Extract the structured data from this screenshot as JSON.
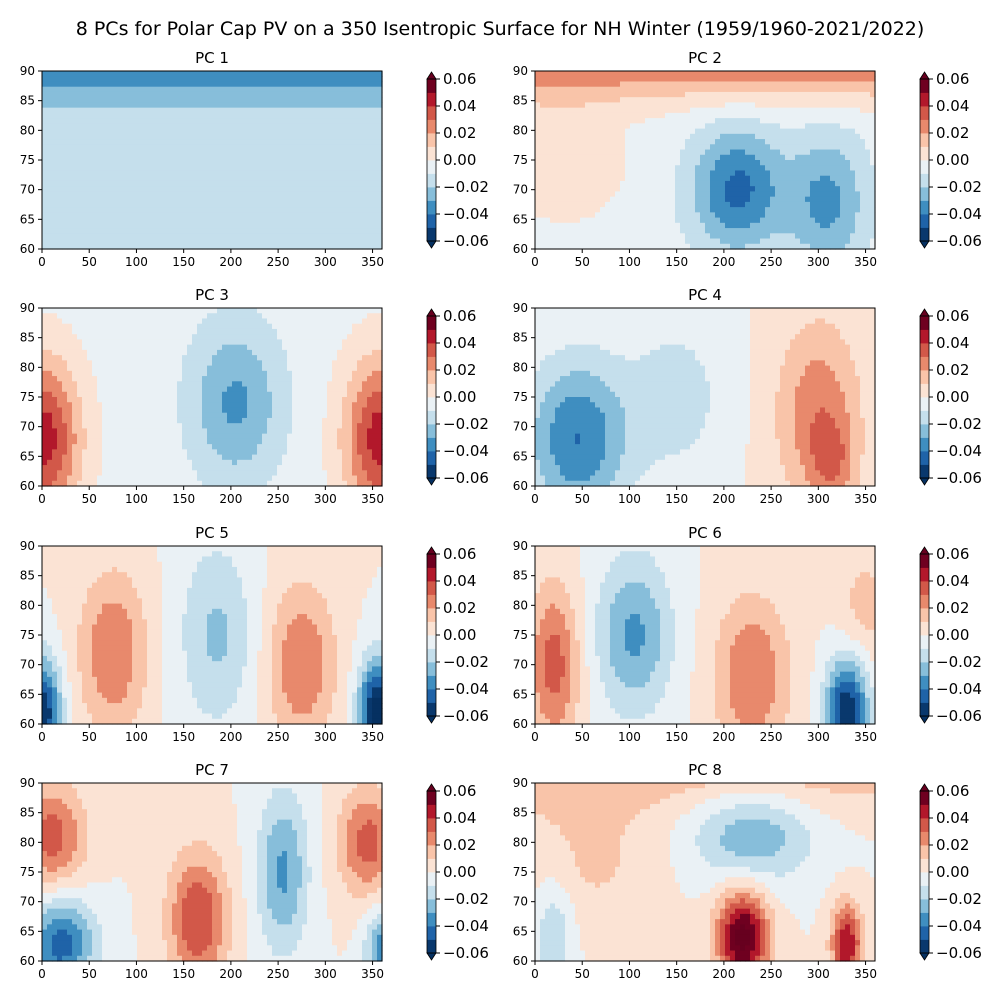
{
  "suptitle": "8 PCs for Polar Cap PV on a 350 Isentropic Surface for NH Winter (1959/1960-2021/2022)",
  "colorscale": {
    "levels": [
      -0.06,
      -0.05,
      -0.04,
      -0.03,
      -0.02,
      -0.01,
      0.0,
      0.01,
      0.02,
      0.03,
      0.04,
      0.05,
      0.06
    ],
    "colors": [
      "#09386d",
      "#1f63a8",
      "#3f8ec0",
      "#87beda",
      "#c5dfec",
      "#eaf1f5",
      "#fbe3d4",
      "#f9c4a9",
      "#e8896c",
      "#d25849",
      "#b2182b",
      "#6f0020"
    ],
    "extend_under": "#053061",
    "extend_over": "#67001f",
    "ticks": [
      -0.06,
      -0.04,
      -0.02,
      0.0,
      0.02,
      0.04,
      0.06
    ],
    "tick_labels": [
      "−0.06",
      "−0.04",
      "−0.02",
      "0.00",
      "0.02",
      "0.04",
      "0.06"
    ]
  },
  "chart_data": [
    {
      "type": "heatmap",
      "title": "PC 1",
      "xlim": [
        0,
        360
      ],
      "ylim": [
        60,
        90
      ],
      "xticks": [
        0,
        50,
        100,
        150,
        200,
        250,
        300,
        350
      ],
      "yticks": [
        60,
        65,
        70,
        75,
        80,
        85,
        90
      ],
      "components": {
        "base": -0.012,
        "lat": [
          -0.03,
          0.0,
          0.0
        ],
        "waves": []
      }
    },
    {
      "type": "heatmap",
      "title": "PC 2",
      "xlim": [
        0,
        360
      ],
      "ylim": [
        60,
        90
      ],
      "xticks": [
        0,
        50,
        100,
        150,
        200,
        250,
        300,
        350
      ],
      "yticks": [
        60,
        65,
        70,
        75,
        80,
        85,
        90
      ],
      "components": {
        "base": -0.005,
        "lat": [
          0.035,
          0.0,
          0.0
        ],
        "waves": [
          {
            "amp": 0.012,
            "lon": 30,
            "width": 80,
            "lat": 75,
            "latw": 10
          },
          {
            "amp": -0.038,
            "lon": 215,
            "width": 55,
            "lat": 70,
            "latw": 9
          },
          {
            "amp": -0.028,
            "lon": 310,
            "width": 45,
            "lat": 68,
            "latw": 10
          }
        ]
      }
    },
    {
      "type": "heatmap",
      "title": "PC 3",
      "xlim": [
        0,
        360
      ],
      "ylim": [
        60,
        90
      ],
      "xticks": [
        0,
        50,
        100,
        150,
        200,
        250,
        300,
        350
      ],
      "yticks": [
        60,
        65,
        70,
        75,
        80,
        85,
        90
      ],
      "components": {
        "base": -0.004,
        "lat": [
          0.0,
          0.0,
          0.0
        ],
        "waves": [
          {
            "amp": 0.05,
            "lon": 0,
            "width": 45,
            "lat": 68,
            "latw": 12
          },
          {
            "amp": 0.05,
            "lon": 360,
            "width": 45,
            "lat": 68,
            "latw": 12
          },
          {
            "amp": -0.028,
            "lon": 205,
            "width": 55,
            "lat": 74,
            "latw": 12
          }
        ]
      }
    },
    {
      "type": "heatmap",
      "title": "PC 4",
      "xlim": [
        0,
        360
      ],
      "ylim": [
        60,
        90
      ],
      "xticks": [
        0,
        50,
        100,
        150,
        200,
        250,
        300,
        350
      ],
      "yticks": [
        60,
        65,
        70,
        75,
        80,
        85,
        90
      ],
      "components": {
        "base": 0.0,
        "lat": [
          0.0,
          0.0,
          0.0
        ],
        "waves": [
          {
            "amp": -0.04,
            "lon": 45,
            "width": 60,
            "lat": 68,
            "latw": 12
          },
          {
            "amp": -0.015,
            "lon": 150,
            "width": 60,
            "lat": 75,
            "latw": 12
          },
          {
            "amp": 0.028,
            "lon": 300,
            "width": 50,
            "lat": 72,
            "latw": 14
          },
          {
            "amp": 0.018,
            "lon": 315,
            "width": 25,
            "lat": 64,
            "latw": 6
          }
        ]
      }
    },
    {
      "type": "heatmap",
      "title": "PC 5",
      "xlim": [
        0,
        360
      ],
      "ylim": [
        60,
        90
      ],
      "xticks": [
        0,
        50,
        100,
        150,
        200,
        250,
        300,
        350
      ],
      "yticks": [
        60,
        65,
        70,
        75,
        80,
        85,
        90
      ],
      "components": {
        "base": 0.0,
        "lat": [
          0.0,
          0.0,
          0.0
        ],
        "waves": [
          {
            "amp": -0.06,
            "lon": 0,
            "width": 22,
            "lat": 62,
            "latw": 8
          },
          {
            "amp": -0.065,
            "lon": 355,
            "width": 22,
            "lat": 62,
            "latw": 8
          },
          {
            "amp": 0.03,
            "lon": 75,
            "width": 40,
            "lat": 72,
            "latw": 12
          },
          {
            "amp": -0.022,
            "lon": 185,
            "width": 45,
            "lat": 75,
            "latw": 14
          },
          {
            "amp": 0.03,
            "lon": 275,
            "width": 40,
            "lat": 70,
            "latw": 12
          }
        ]
      }
    },
    {
      "type": "heatmap",
      "title": "PC 6",
      "xlim": [
        0,
        360
      ],
      "ylim": [
        60,
        90
      ],
      "xticks": [
        0,
        50,
        100,
        150,
        200,
        250,
        300,
        350
      ],
      "yticks": [
        60,
        65,
        70,
        75,
        80,
        85,
        90
      ],
      "components": {
        "base": 0.0,
        "lat": [
          0.0,
          0.0,
          0.0
        ],
        "waves": [
          {
            "amp": 0.035,
            "lon": 20,
            "width": 30,
            "lat": 70,
            "latw": 12
          },
          {
            "amp": -0.032,
            "lon": 105,
            "width": 45,
            "lat": 75,
            "latw": 12
          },
          {
            "amp": 0.03,
            "lon": 230,
            "width": 45,
            "lat": 68,
            "latw": 12
          },
          {
            "amp": -0.06,
            "lon": 330,
            "width": 25,
            "lat": 62,
            "latw": 8
          },
          {
            "amp": 0.015,
            "lon": 350,
            "width": 30,
            "lat": 80,
            "latw": 8
          }
        ]
      }
    },
    {
      "type": "heatmap",
      "title": "PC 7",
      "xlim": [
        0,
        360
      ],
      "ylim": [
        60,
        90
      ],
      "xticks": [
        0,
        50,
        100,
        150,
        200,
        250,
        300,
        350
      ],
      "yticks": [
        60,
        65,
        70,
        75,
        80,
        85,
        90
      ],
      "components": {
        "base": 0.0,
        "lat": [
          0.0,
          0.0,
          0.0
        ],
        "waves": [
          {
            "amp": 0.035,
            "lon": 10,
            "width": 40,
            "lat": 81,
            "latw": 8
          },
          {
            "amp": -0.045,
            "lon": 20,
            "width": 40,
            "lat": 63,
            "latw": 7
          },
          {
            "amp": 0.04,
            "lon": 165,
            "width": 35,
            "lat": 67,
            "latw": 10
          },
          {
            "amp": -0.032,
            "lon": 255,
            "width": 30,
            "lat": 75,
            "latw": 12
          },
          {
            "amp": 0.035,
            "lon": 345,
            "width": 35,
            "lat": 80,
            "latw": 8
          },
          {
            "amp": -0.035,
            "lon": 360,
            "width": 20,
            "lat": 62,
            "latw": 6
          }
        ]
      }
    },
    {
      "type": "heatmap",
      "title": "PC 8",
      "xlim": [
        0,
        360
      ],
      "ylim": [
        60,
        90
      ],
      "xticks": [
        0,
        50,
        100,
        150,
        200,
        250,
        300,
        350
      ],
      "yticks": [
        60,
        65,
        70,
        75,
        80,
        85,
        90
      ],
      "components": {
        "base": 0.0,
        "lat": [
          0.015,
          0.0,
          0.0
        ],
        "waves": [
          {
            "amp": 0.012,
            "lon": 60,
            "width": 80,
            "lat": 78,
            "latw": 12
          },
          {
            "amp": -0.028,
            "lon": 230,
            "width": 70,
            "lat": 81,
            "latw": 7
          },
          {
            "amp": 0.065,
            "lon": 220,
            "width": 30,
            "lat": 64,
            "latw": 7
          },
          {
            "amp": 0.05,
            "lon": 330,
            "width": 18,
            "lat": 63,
            "latw": 6
          },
          {
            "amp": -0.02,
            "lon": 20,
            "width": 25,
            "lat": 65,
            "latw": 8
          }
        ]
      }
    }
  ]
}
